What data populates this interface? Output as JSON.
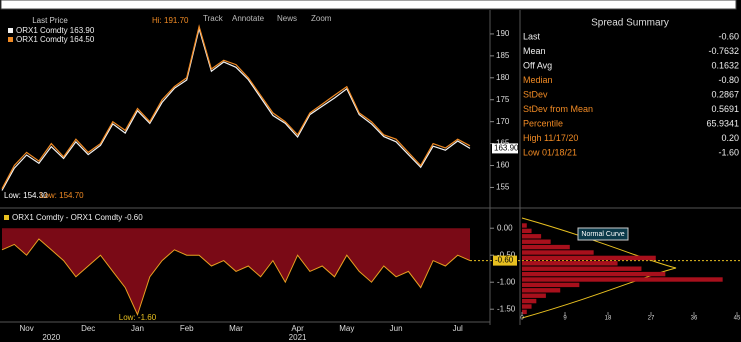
{
  "toolbar": {
    "chart_label": "Last Price",
    "items": [
      "Track",
      "Annotate",
      "News",
      "Zoom"
    ]
  },
  "chart_data": [
    {
      "type": "line",
      "categories": [
        null,
        null,
        "Nov",
        null,
        null,
        null,
        null,
        "Dec",
        null,
        null,
        null,
        "Jan",
        null,
        null,
        null,
        "Feb",
        null,
        null,
        null,
        "Mar",
        null,
        null,
        null,
        null,
        "Apr",
        null,
        null,
        null,
        "May",
        null,
        null,
        null,
        "Jun",
        null,
        null,
        null,
        null,
        "Jul",
        null
      ],
      "year_labels": [
        null,
        null,
        null,
        null,
        "2020",
        null,
        null,
        null,
        null,
        null,
        null,
        null,
        null,
        null,
        null,
        null,
        null,
        null,
        null,
        null,
        null,
        null,
        null,
        null,
        "2021",
        null,
        null,
        null,
        null,
        null,
        null,
        null,
        null,
        null,
        null,
        null,
        null,
        null,
        null
      ],
      "series": [
        {
          "name": "ORX1 Comdty 163.90",
          "color": "#f2f2f2",
          "values": [
            154.3,
            159.4,
            162.4,
            160.5,
            164.3,
            161.6,
            165.4,
            162.5,
            164.6,
            169.5,
            167.4,
            172.5,
            169.6,
            174.4,
            177.6,
            179.5,
            191.2,
            181.5,
            183.6,
            182.4,
            179.6,
            175.5,
            171.4,
            169.6,
            166.5,
            171.6,
            173.5,
            175.4,
            177.5,
            171.6,
            169.5,
            166.6,
            165.4,
            162.5,
            159.6,
            164.4,
            163.5,
            165.6,
            163.9
          ]
        },
        {
          "name": "ORX1 Comdty 164.50",
          "color": "#f08a24",
          "values": [
            154.7,
            160.0,
            163.0,
            161.0,
            165.0,
            162.0,
            166.0,
            163.0,
            165.0,
            170.0,
            168.0,
            173.0,
            170.0,
            175.0,
            178.0,
            180.0,
            191.7,
            182.0,
            184.0,
            183.0,
            180.0,
            176.0,
            172.0,
            170.0,
            167.0,
            172.0,
            174.0,
            176.0,
            178.0,
            172.0,
            170.0,
            167.0,
            166.0,
            163.0,
            160.0,
            165.0,
            164.0,
            166.0,
            164.5
          ]
        }
      ],
      "annotations": [
        "Hi: 191.70",
        "Low: 154.30",
        "Low: 154.70"
      ],
      "last_label": "163.90",
      "ylim": [
        151,
        195
      ],
      "yticks": [
        155,
        160,
        165,
        170,
        175,
        180,
        185,
        190
      ]
    },
    {
      "type": "area",
      "series": [
        {
          "name": "ORX1 Comdty - ORX1 Comdty -0.60",
          "color": "#e8a020",
          "fill": "#7a0a16",
          "values": [
            -0.4,
            -0.3,
            -0.5,
            -0.2,
            -0.4,
            -0.6,
            -0.9,
            -0.7,
            -0.5,
            -0.8,
            -1.1,
            -1.6,
            -0.9,
            -0.6,
            -0.4,
            -0.5,
            -0.5,
            -0.7,
            -0.6,
            -0.8,
            -0.7,
            -0.9,
            -0.6,
            -1.0,
            -0.5,
            -0.8,
            -0.7,
            -0.9,
            -0.5,
            -0.8,
            -1.0,
            -0.7,
            -0.9,
            -0.8,
            -1.1,
            -0.6,
            -0.7,
            -0.5,
            -0.6
          ]
        }
      ],
      "annotations": [
        "Low: -1.60"
      ],
      "last_label": "-0.60",
      "ylim": [
        -1.7,
        0.3
      ],
      "yticks": [
        {
          "value": 0,
          "label": "0.00"
        },
        {
          "value": -0.5,
          "label": "-0.50"
        },
        {
          "value": -1,
          "label": "-1.00"
        },
        {
          "value": -1.5,
          "label": "-1.50"
        }
      ]
    },
    {
      "type": "histogram",
      "orientation": "horizontal",
      "color": "#a8101c",
      "legend": "Normal Curve",
      "bins": [
        -1.6,
        -1.5,
        -1.4,
        -1.3,
        -1.2,
        -1.1,
        -1.0,
        -0.9,
        -0.8,
        -0.7,
        -0.6,
        -0.5,
        -0.4,
        -0.3,
        -0.2,
        -0.1,
        0.0,
        0.1
      ],
      "counts": [
        1,
        2,
        3,
        5,
        8,
        12,
        42,
        30,
        25,
        20,
        28,
        15,
        10,
        6,
        4,
        2,
        1
      ],
      "xlim": [
        0,
        45
      ],
      "xticks": [
        0,
        9,
        18,
        27,
        36,
        45
      ]
    }
  ],
  "spread_summary": {
    "title": "Spread Summary",
    "rows": [
      {
        "label": "Last",
        "value": "-0.60"
      },
      {
        "label": "Mean",
        "value": "-0.7632"
      },
      {
        "label": "Off Avg",
        "value": "0.1632"
      },
      {
        "label": "Median",
        "value": "-0.80"
      },
      {
        "label": "StDev",
        "value": "0.2867"
      },
      {
        "label": "StDev from Mean",
        "value": "0.5691"
      },
      {
        "label": "Percentile",
        "value": "65.9341"
      },
      {
        "label": "High 11/17/20",
        "value": "0.20"
      },
      {
        "label": "Low 01/18/21",
        "value": "-1.60"
      }
    ]
  }
}
